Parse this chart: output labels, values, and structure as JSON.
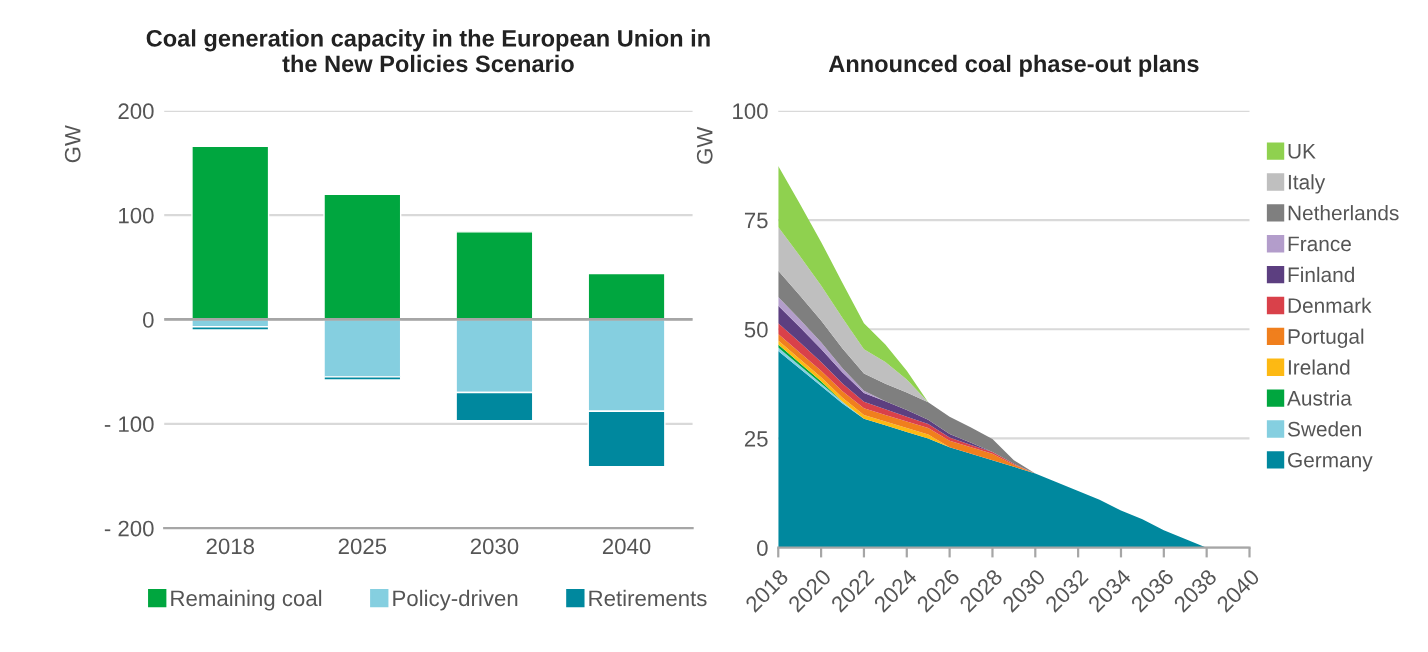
{
  "chart_data": [
    {
      "type": "bar",
      "title": "Coal generation capacity in the European Union in\nthe New Policies Scenario",
      "ylabel": "GW",
      "stacked": true,
      "categories": [
        "2018",
        "2025",
        "2030",
        "2040"
      ],
      "series": [
        {
          "name": "Remaining coal",
          "color": "#00a63f",
          "values": [
            166,
            120,
            84,
            44
          ]
        },
        {
          "name": "Policy-driven",
          "color": "#85cfe0",
          "values": [
            -7,
            -55,
            -70,
            -88
          ]
        },
        {
          "name": "Retirements",
          "color": "#00889e",
          "values": [
            -3,
            -3,
            -27,
            -53
          ]
        }
      ],
      "ylim": [
        -200,
        200
      ],
      "yticks": [
        {
          "value": -200,
          "label": "- 200"
        },
        {
          "value": -100,
          "label": "- 100"
        },
        0,
        100,
        200
      ],
      "grid": "y",
      "legend": "bottom"
    },
    {
      "type": "area",
      "title": "Announced coal phase-out plans",
      "ylabel": "GW",
      "stacked": true,
      "x": [
        2018,
        2019,
        2020,
        2021,
        2022,
        2023,
        2024,
        2025,
        2026,
        2027,
        2028,
        2029,
        2030,
        2031,
        2032,
        2033,
        2034,
        2035,
        2036,
        2037,
        2038
      ],
      "series": [
        {
          "name": "Germany",
          "color": "#00889e",
          "values": [
            45,
            41,
            37,
            33,
            29.5,
            28,
            26.5,
            25,
            23,
            21.5,
            20,
            18.5,
            17,
            15,
            13,
            11,
            8.5,
            6.5,
            4,
            2,
            0
          ]
        },
        {
          "name": "Sweden",
          "color": "#85cfe0",
          "values": [
            0.8,
            0.7,
            0.6,
            0.4,
            0,
            0,
            0,
            0,
            0,
            0,
            0,
            0,
            0,
            0,
            0,
            0,
            0,
            0,
            0,
            0,
            0
          ]
        },
        {
          "name": "Austria",
          "color": "#00a63f",
          "values": [
            0.7,
            0.6,
            0.5,
            0,
            0,
            0,
            0,
            0,
            0,
            0,
            0,
            0,
            0,
            0,
            0,
            0,
            0,
            0,
            0,
            0,
            0
          ]
        },
        {
          "name": "Ireland",
          "color": "#fdb913",
          "values": [
            0.9,
            0.9,
            0.9,
            0.9,
            0.9,
            0.9,
            0.9,
            0.9,
            0,
            0,
            0,
            0,
            0,
            0,
            0,
            0,
            0,
            0,
            0,
            0,
            0
          ]
        },
        {
          "name": "Portugal",
          "color": "#f07f1d",
          "values": [
            1.5,
            1.5,
            1.5,
            1.5,
            1.5,
            1.5,
            1.5,
            1.5,
            1.5,
            1.5,
            1.5,
            0.5,
            0,
            0,
            0,
            0,
            0,
            0,
            0,
            0,
            0
          ]
        },
        {
          "name": "Denmark",
          "color": "#d9414a",
          "values": [
            2.5,
            2.3,
            2,
            1.8,
            1.5,
            1.3,
            1.1,
            0.9,
            0.7,
            0.5,
            0.4,
            0.2,
            0,
            0,
            0,
            0,
            0,
            0,
            0,
            0,
            0
          ]
        },
        {
          "name": "Finland",
          "color": "#5c3f80",
          "values": [
            4,
            3.5,
            3,
            2.5,
            2,
            1.8,
            1.5,
            1,
            0.8,
            0.5,
            0,
            0,
            0,
            0,
            0,
            0,
            0,
            0,
            0,
            0,
            0
          ]
        },
        {
          "name": "France",
          "color": "#b39dcb",
          "values": [
            2,
            1.8,
            1.5,
            1,
            0.5,
            0,
            0,
            0,
            0,
            0,
            0,
            0,
            0,
            0,
            0,
            0,
            0,
            0,
            0,
            0,
            0
          ]
        },
        {
          "name": "Netherlands",
          "color": "#7f7f7f",
          "values": [
            6,
            5.5,
            5,
            4.5,
            4,
            4,
            4,
            4,
            4,
            3.5,
            3,
            0.8,
            0,
            0,
            0,
            0,
            0,
            0,
            0,
            0,
            0
          ]
        },
        {
          "name": "Italy",
          "color": "#bfbfbf",
          "values": [
            10,
            9,
            8,
            7,
            5.5,
            5,
            3,
            0,
            0,
            0,
            0,
            0,
            0,
            0,
            0,
            0,
            0,
            0,
            0,
            0,
            0
          ]
        },
        {
          "name": "UK",
          "color": "#8fd14f",
          "values": [
            14,
            12,
            10,
            8,
            6,
            4,
            2,
            0,
            0,
            0,
            0,
            0,
            0,
            0,
            0,
            0,
            0,
            0,
            0,
            0,
            0
          ]
        }
      ],
      "xlim": [
        2018,
        2040
      ],
      "xticks": [
        2018,
        2020,
        2022,
        2024,
        2026,
        2028,
        2030,
        2032,
        2034,
        2036,
        2038,
        2040
      ],
      "ylim": [
        0,
        100
      ],
      "yticks": [
        0,
        25,
        50,
        75,
        100
      ],
      "grid": "y",
      "legend": "right"
    }
  ]
}
